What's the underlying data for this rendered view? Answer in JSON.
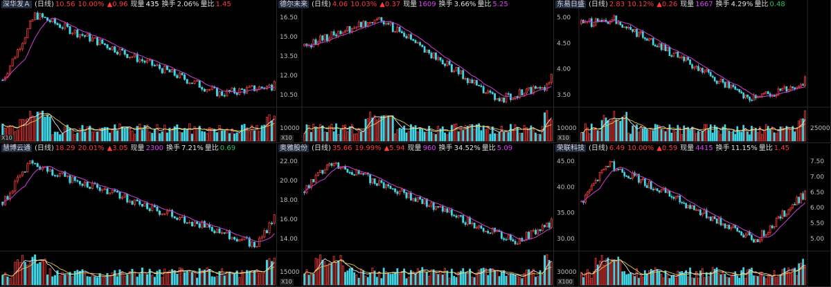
{
  "panels": [
    {
      "name": "深华发Ａ",
      "period": "(日线)",
      "price": "10.56",
      "change_pct": "10.00%",
      "change_amt": "▲0.96",
      "now_vol_label": "现量",
      "now_vol": "435",
      "turnover_label": "换手",
      "turnover": "2.06%",
      "vol_ratio_label": "量比",
      "vol_ratio": "1.45",
      "vol_color": "white",
      "ratio_color": "red",
      "axis_side": "left",
      "price_ticks": [],
      "vol_ticks": [],
      "x10_label": "X10",
      "series": {
        "start": 11.0,
        "ymin": 9.0,
        "ymax": 16.5,
        "peak_pos": 0.12,
        "peak_val": 16.2,
        "trough_pos": 0.8,
        "trough_val": 9.9,
        "end_val": 10.56
      }
    },
    {
      "name": "德尔未来",
      "period": "(日线)",
      "price": "4.06",
      "change_pct": "10.03%",
      "change_amt": "▲0.37",
      "now_vol_label": "现量",
      "now_vol": "1609",
      "turnover_label": "换手",
      "turnover": "3.66%",
      "vol_ratio_label": "量比",
      "vol_ratio": "5.25",
      "vol_color": "pink",
      "ratio_color": "pink",
      "axis_side": "left",
      "price_ticks": [
        "16.50",
        "15.00",
        "13.50",
        "12.00",
        "10.50"
      ],
      "vol_ticks": [
        "10000"
      ],
      "x10_label": "X10",
      "series": {
        "start": 14.2,
        "ymin": 9.6,
        "ymax": 16.9,
        "peak_pos": 0.3,
        "peak_val": 16.4,
        "trough_pos": 0.78,
        "trough_val": 10.0,
        "end_val": 11.2
      }
    },
    {
      "name": "东易日盛",
      "period": "(日线)",
      "price": "2.83",
      "change_pct": "10.12%",
      "change_amt": "▲0.26",
      "now_vol_label": "现量",
      "now_vol": "1667",
      "turnover_label": "换手",
      "turnover": "4.29%",
      "vol_ratio_label": "量比",
      "vol_ratio": "0.48",
      "vol_color": "pink",
      "ratio_color": "green",
      "axis_side": "both",
      "price_ticks": [
        "5.00",
        "4.50",
        "4.00",
        "3.50"
      ],
      "vol_ticks": [
        "10000"
      ],
      "vol_ticks_right": [
        "25000"
      ],
      "x10_label": "X10",
      "series": {
        "start": 5.0,
        "ymin": 3.1,
        "ymax": 5.3,
        "peak_pos": 0.15,
        "peak_val": 5.1,
        "trough_pos": 0.75,
        "trough_val": 3.25,
        "end_val": 3.55
      }
    },
    {
      "name": "慧博云通",
      "period": "(日线)",
      "price": "18.29",
      "change_pct": "20.01%",
      "change_amt": "▲3.05",
      "now_vol_label": "现量",
      "now_vol": "2300",
      "turnover_label": "换手",
      "turnover": "7.21%",
      "vol_ratio_label": "量比",
      "vol_ratio": "0.69",
      "vol_color": "pink",
      "ratio_color": "green",
      "axis_side": "left",
      "price_ticks": [],
      "vol_ticks": [],
      "x10_label": "",
      "series": {
        "start": 22.0,
        "ymin": 12.0,
        "ymax": 32.0,
        "peak_pos": 0.1,
        "peak_val": 30.0,
        "trough_pos": 0.93,
        "trough_val": 13.0,
        "end_val": 18.29
      }
    },
    {
      "name": "奥雅股份",
      "period": "(日线)",
      "price": "35.66",
      "change_pct": "19.99%",
      "change_amt": "▲5.94",
      "now_vol_label": "现量",
      "now_vol": "960",
      "turnover_label": "换手",
      "turnover": "34.52%",
      "vol_ratio_label": "量比",
      "vol_ratio": "5.09",
      "vol_color": "pink",
      "ratio_color": "pink",
      "axis_side": "left",
      "price_ticks": [
        "22.00",
        "20.00",
        "18.00",
        "16.00",
        "14.00"
      ],
      "vol_ticks": [
        "15000"
      ],
      "x10_label": "X10",
      "series": {
        "start": 19.0,
        "ymin": 12.8,
        "ymax": 23.0,
        "peak_pos": 0.1,
        "peak_val": 22.3,
        "trough_pos": 0.85,
        "trough_val": 13.6,
        "end_val": 15.5
      }
    },
    {
      "name": "荣联科技",
      "period": "(日线)",
      "price": "6.49",
      "change_pct": "10.00%",
      "change_amt": "▲0.59",
      "now_vol_label": "现量",
      "now_vol": "4415",
      "turnover_label": "换手",
      "turnover": "11.15%",
      "vol_ratio_label": "量比",
      "vol_ratio": "1.45",
      "vol_color": "pink",
      "ratio_color": "red",
      "axis_side": "both",
      "price_ticks": [
        "45.00",
        "40.00",
        "35.00",
        "30.00"
      ],
      "price_ticks_right": [
        "7.50",
        "7.00",
        "6.50",
        "6.00",
        "5.50",
        "5.00"
      ],
      "vol_ticks": [
        "30000"
      ],
      "x10_label": "X100",
      "series": {
        "start": 38.0,
        "ymin": 27.0,
        "ymax": 49.0,
        "peak_pos": 0.12,
        "peak_val": 47.0,
        "trough_pos": 0.78,
        "trough_val": 29.0,
        "end_val": 40.0
      }
    }
  ],
  "colors": {
    "up": "#ff3b3b",
    "down": "#3fd6e6",
    "ma": "#c23cc8",
    "vol_ma_yellow": "#e8c84a",
    "vol_ma_white": "#e8e8e8",
    "grid": "#2a2a2a"
  }
}
